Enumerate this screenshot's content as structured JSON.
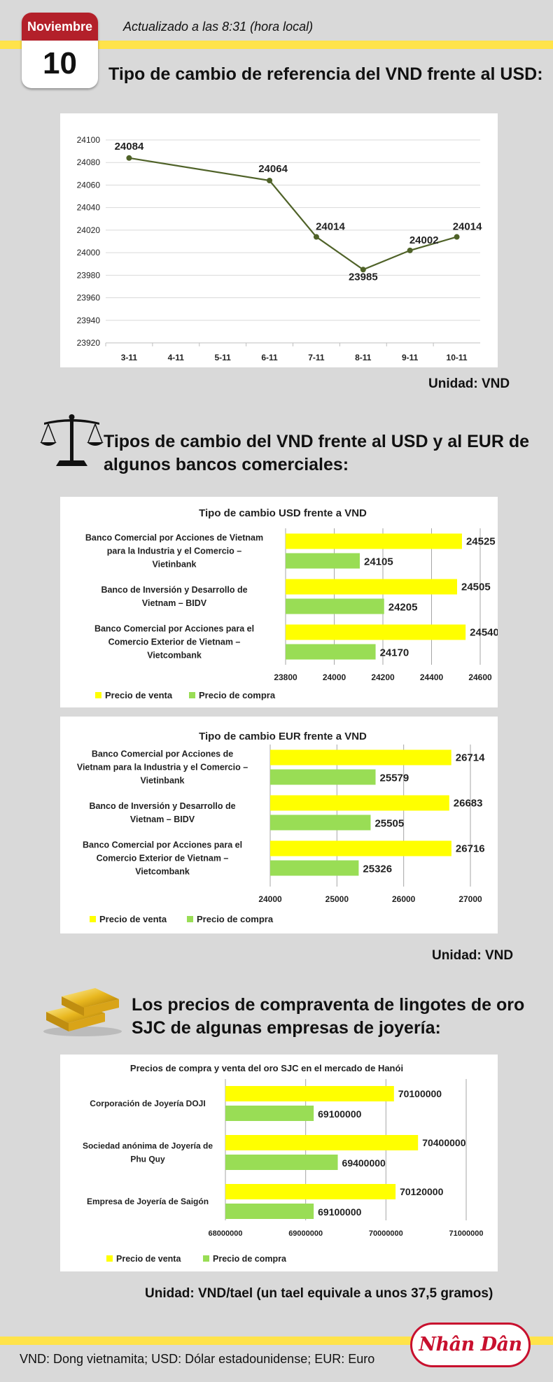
{
  "header": {
    "month": "Noviembre",
    "day": "10",
    "updated": "Actualizado a las 8:31 (hora local)",
    "title": "Tipo de cambio de referencia del VND frente al USD:"
  },
  "section1": {
    "unit": "Unidad: VND"
  },
  "section2": {
    "title_line1": "Tipos de cambio del VND frente al USD y al EUR de",
    "title_line2": "algunos bancos comerciales:",
    "unit": "Unidad: VND"
  },
  "section3": {
    "title_line1": "Los precios de compraventa de lingotes de oro",
    "title_line2": "SJC de algunas empresas de joyería:",
    "unit": "Unidad: VND/tael (un tael equivale a unos 37,5 gramos)"
  },
  "footer": {
    "note": "VND: Dong vietnamita; USD: Dólar estadounidense; EUR: Euro",
    "logo": "Nhân Dân"
  },
  "colors": {
    "sell": "#ffff00",
    "buy": "#99dd55",
    "line": "#4f6228",
    "band": "#ffe34a",
    "calendar": "#b3202a"
  },
  "chart_data": [
    {
      "type": "line",
      "title": "",
      "categories": [
        "3-11",
        "4-11",
        "5-11",
        "6-11",
        "7-11",
        "8-11",
        "9-11",
        "10-11"
      ],
      "points": [
        {
          "x": "3-11",
          "y": 24084
        },
        {
          "x": "6-11",
          "y": 24064
        },
        {
          "x": "7-11",
          "y": 24014
        },
        {
          "x": "8-11",
          "y": 23985
        },
        {
          "x": "9-11",
          "y": 24002
        },
        {
          "x": "10-11",
          "y": 24014
        }
      ],
      "labels": [
        "24084",
        "24064",
        "24014",
        "23985",
        "24002",
        "24014"
      ],
      "ylim": [
        23920,
        24100
      ],
      "yticks": [
        "23920",
        "23940",
        "23960",
        "23980",
        "24000",
        "24020",
        "24040",
        "24060",
        "24080",
        "24100"
      ],
      "grid": true
    },
    {
      "type": "bar",
      "title": "Tipo de cambio USD frente a VND",
      "categories": [
        [
          "Banco Comercial por Acciones de Vietnam",
          "para la Industria y el Comercio –",
          "Vietinbank"
        ],
        [
          "Banco de Inversión y Desarrollo de",
          "Vietnam – BIDV"
        ],
        [
          "Banco Comercial por Acciones para el",
          "Comercio Exterior de Vietnam –",
          "Vietcombank"
        ]
      ],
      "series": [
        {
          "name": "Precio de venta",
          "values": [
            24525,
            24505,
            24540
          ],
          "labels": [
            "24525",
            "24505",
            "24540"
          ]
        },
        {
          "name": "Precio de compra",
          "values": [
            24105,
            24205,
            24170
          ],
          "labels": [
            "24105",
            "24205",
            "24170"
          ]
        }
      ],
      "xlim": [
        23800,
        24600
      ],
      "xticks": [
        "23800",
        "24000",
        "24200",
        "24400",
        "24600"
      ],
      "legend": "bottom",
      "grid": true
    },
    {
      "type": "bar",
      "title": "Tipo de cambio EUR frente a VND",
      "categories": [
        [
          "Banco Comercial por Acciones de",
          "Vietnam para la Industria y el Comercio –",
          "Vietinbank"
        ],
        [
          "Banco de Inversión y Desarrollo de",
          "Vietnam – BIDV"
        ],
        [
          "Banco Comercial por Acciones para el",
          "Comercio Exterior de Vietnam –",
          "Vietcombank"
        ]
      ],
      "series": [
        {
          "name": "Precio de venta",
          "values": [
            26714,
            26683,
            26716
          ],
          "labels": [
            "26714",
            "26683",
            "26716"
          ]
        },
        {
          "name": "Precio de compra",
          "values": [
            25579,
            25505,
            25326
          ],
          "labels": [
            "25579",
            "25505",
            "25326"
          ]
        }
      ],
      "xlim": [
        24000,
        27000
      ],
      "xticks": [
        "24000",
        "25000",
        "26000",
        "27000"
      ],
      "legend": "bottom",
      "grid": true
    },
    {
      "type": "bar",
      "title": "Precios de compra y venta del oro SJC en el mercado de Hanói",
      "categories": [
        [
          "Corporación de Joyería DOJI"
        ],
        [
          "Sociedad anónima de Joyería de",
          "Phu Quy"
        ],
        [
          "Empresa de Joyería de Saigón"
        ]
      ],
      "series": [
        {
          "name": "Precio de venta",
          "values": [
            70100000,
            70400000,
            70120000
          ],
          "labels": [
            "70100000",
            "70400000",
            "70120000"
          ]
        },
        {
          "name": "Precio de compra",
          "values": [
            69100000,
            69400000,
            69100000
          ],
          "labels": [
            "69100000",
            "69400000",
            "69100000"
          ]
        }
      ],
      "xlim": [
        68000000,
        71000000
      ],
      "xticks": [
        "68000000",
        "69000000",
        "70000000",
        "71000000"
      ],
      "legend": "bottom",
      "grid": true
    }
  ]
}
